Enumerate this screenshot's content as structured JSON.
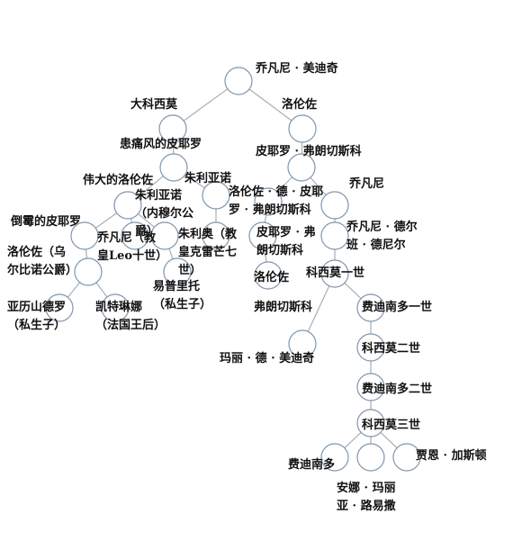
{
  "nodes": [
    {
      "id": "n1",
      "lines": [
        "乔凡尼 · 美迪奇"
      ]
    },
    {
      "id": "n2",
      "lines": [
        "大科西莫"
      ]
    },
    {
      "id": "n3",
      "lines": [
        "洛伦佐"
      ]
    },
    {
      "id": "n4",
      "lines": [
        "患痛风的皮耶罗"
      ]
    },
    {
      "id": "n5",
      "lines": [
        "皮耶罗 · 弗朗切斯科"
      ]
    },
    {
      "id": "n6",
      "lines": [
        "伟大的洛伦佐"
      ]
    },
    {
      "id": "n7",
      "lines": [
        "朱利亚诺"
      ]
    },
    {
      "id": "n8",
      "lines": [
        "洛伦佐 · 德 · 皮耶",
        "罗 · 弗朗切斯科"
      ]
    },
    {
      "id": "n9",
      "lines": [
        "乔凡尼"
      ]
    },
    {
      "id": "n10",
      "lines": [
        "倒霉的皮耶罗"
      ]
    },
    {
      "id": "n11",
      "lines": [
        "乔凡尼（教",
        "皇Leo十世）"
      ]
    },
    {
      "id": "n12",
      "lines": [
        "朱利亚诺",
        "（内穆尔公",
        "爵）"
      ]
    },
    {
      "id": "n13",
      "lines": [
        "朱利奥（教",
        "皇克雷芒七",
        "世）"
      ]
    },
    {
      "id": "n14",
      "lines": [
        "皮耶罗 · 弗",
        "朗切斯科"
      ]
    },
    {
      "id": "n15",
      "lines": [
        "乔凡尼 · 德尔",
        "班 · 德尼尔"
      ]
    },
    {
      "id": "n16",
      "lines": [
        "洛伦佐（乌",
        "尔比诺公爵）"
      ]
    },
    {
      "id": "n17",
      "lines": [
        "易普里托",
        "（私生子）"
      ]
    },
    {
      "id": "n18",
      "lines": [
        "洛伦佐"
      ]
    },
    {
      "id": "n19",
      "lines": [
        "科西莫一世"
      ]
    },
    {
      "id": "n20",
      "lines": [
        "亚历山德罗",
        "（私生子）"
      ]
    },
    {
      "id": "n21",
      "lines": [
        "凯特琳娜",
        "（法国王后）"
      ]
    },
    {
      "id": "n22",
      "lines": [
        "弗朗切斯科"
      ]
    },
    {
      "id": "n23",
      "lines": [
        "费迪南多一世"
      ]
    },
    {
      "id": "n24",
      "lines": [
        "玛丽 · 德 · 美迪奇"
      ]
    },
    {
      "id": "n25",
      "lines": [
        "科西莫二世"
      ]
    },
    {
      "id": "n26",
      "lines": [
        "费迪南多二世"
      ]
    },
    {
      "id": "n27",
      "lines": [
        "科西莫三世"
      ]
    },
    {
      "id": "n28",
      "lines": [
        "费迪南多"
      ]
    },
    {
      "id": "n29",
      "lines": [
        "安娜 · 玛丽",
        "亚 · 路易撒"
      ]
    },
    {
      "id": "n30",
      "lines": [
        "贾恩 · 加斯顿"
      ]
    }
  ],
  "edges": [
    [
      "n1",
      "n2"
    ],
    [
      "n1",
      "n3"
    ],
    [
      "n2",
      "n4"
    ],
    [
      "n3",
      "n5"
    ],
    [
      "n4",
      "n6"
    ],
    [
      "n4",
      "n7"
    ],
    [
      "n5",
      "n8"
    ],
    [
      "n5",
      "n9"
    ],
    [
      "n6",
      "n10"
    ],
    [
      "n6",
      "n11"
    ],
    [
      "n6",
      "n12"
    ],
    [
      "n7",
      "n13"
    ],
    [
      "n8",
      "n14"
    ],
    [
      "n9",
      "n15"
    ],
    [
      "n10",
      "n16"
    ],
    [
      "n12",
      "n17"
    ],
    [
      "n14",
      "n18"
    ],
    [
      "n15",
      "n19"
    ],
    [
      "n16",
      "n20"
    ],
    [
      "n16",
      "n21"
    ],
    [
      "n19",
      "n22"
    ],
    [
      "n19",
      "n23"
    ],
    [
      "n22",
      "n24"
    ],
    [
      "n23",
      "n25"
    ],
    [
      "n25",
      "n26"
    ],
    [
      "n26",
      "n27"
    ],
    [
      "n27",
      "n28"
    ],
    [
      "n27",
      "n29"
    ],
    [
      "n27",
      "n30"
    ]
  ]
}
